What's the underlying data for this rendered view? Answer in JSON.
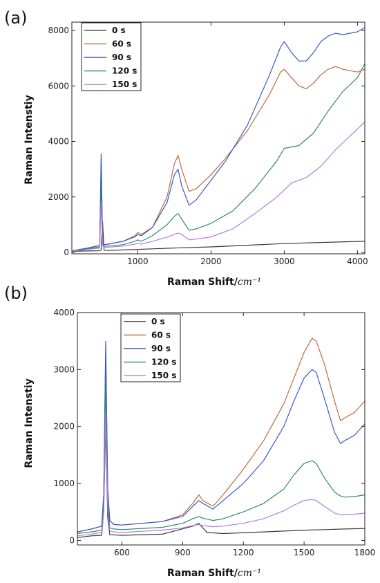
{
  "chart_data": [
    {
      "type": "line",
      "panel_label": "(a)",
      "xlabel": "Raman Shift/",
      "xunit": "cm⁻¹",
      "ylabel": "Raman Intenstiy",
      "xlim": [
        100,
        4100
      ],
      "ylim": [
        -50,
        8300
      ],
      "xticks": [
        1000,
        2000,
        3000,
        4000
      ],
      "yticks": [
        0,
        2000,
        4000,
        6000,
        8000
      ],
      "legend_position": "top-left",
      "grid": false,
      "series": [
        {
          "name": "0 s",
          "color": "#3a3a3a",
          "x": [
            100,
            450,
            500,
            520,
            540,
            600,
            800,
            1000,
            1200,
            1500,
            2000,
            2500,
            3000,
            3500,
            4100
          ],
          "y": [
            40,
            60,
            80,
            1100,
            80,
            70,
            90,
            110,
            130,
            160,
            200,
            260,
            320,
            360,
            400
          ]
        },
        {
          "name": "60 s",
          "color": "#b86b3c",
          "x": [
            100,
            300,
            480,
            500,
            520,
            540,
            600,
            800,
            960,
            1000,
            1050,
            1200,
            1400,
            1500,
            1550,
            1600,
            1700,
            1800,
            2000,
            2200,
            2500,
            2800,
            2950,
            3000,
            3100,
            3200,
            3300,
            3400,
            3500,
            3600,
            3700,
            3800,
            3900,
            4000,
            4100
          ],
          "y": [
            50,
            150,
            250,
            3200,
            450,
            280,
            300,
            400,
            600,
            720,
            650,
            900,
            2000,
            3200,
            3500,
            3000,
            2200,
            2300,
            2800,
            3400,
            4400,
            5700,
            6500,
            6600,
            6300,
            6000,
            5900,
            6100,
            6400,
            6600,
            6700,
            6600,
            6550,
            6500,
            6600
          ]
        },
        {
          "name": "90 s",
          "color": "#3a56c8",
          "x": [
            100,
            300,
            480,
            500,
            520,
            540,
            600,
            800,
            960,
            1000,
            1050,
            1200,
            1400,
            1500,
            1550,
            1600,
            1700,
            1800,
            2000,
            2200,
            2500,
            2800,
            2950,
            3000,
            3100,
            3200,
            3300,
            3400,
            3500,
            3600,
            3700,
            3800,
            3900,
            4000,
            4100
          ],
          "y": [
            60,
            150,
            250,
            3550,
            450,
            280,
            300,
            400,
            560,
            650,
            600,
            900,
            1800,
            2800,
            3000,
            2400,
            1700,
            1900,
            2600,
            3300,
            4600,
            6400,
            7400,
            7600,
            7200,
            6900,
            6900,
            7200,
            7600,
            7800,
            7900,
            7850,
            7900,
            7950,
            8100
          ]
        },
        {
          "name": "120 s",
          "color": "#2f8a6d",
          "x": [
            100,
            300,
            480,
            500,
            520,
            540,
            600,
            800,
            960,
            1000,
            1050,
            1200,
            1400,
            1500,
            1550,
            1600,
            1700,
            1800,
            2000,
            2300,
            2600,
            2900,
            3000,
            3100,
            3200,
            3400,
            3600,
            3800,
            4000,
            4100
          ],
          "y": [
            60,
            120,
            200,
            2500,
            350,
            220,
            230,
            280,
            400,
            450,
            400,
            600,
            1000,
            1300,
            1400,
            1200,
            800,
            850,
            1050,
            1500,
            2300,
            3300,
            3750,
            3800,
            3850,
            4300,
            5100,
            5800,
            6300,
            6800
          ]
        },
        {
          "name": "150 s",
          "color": "#b57be0",
          "x": [
            100,
            300,
            480,
            500,
            520,
            540,
            600,
            800,
            960,
            1000,
            1050,
            1200,
            1400,
            1500,
            1550,
            1600,
            1700,
            1800,
            2000,
            2300,
            2600,
            2900,
            3100,
            3300,
            3500,
            3700,
            3900,
            4100
          ],
          "y": [
            50,
            100,
            160,
            1800,
            260,
            180,
            190,
            230,
            300,
            330,
            300,
            400,
            550,
            650,
            700,
            650,
            450,
            480,
            560,
            850,
            1400,
            2000,
            2500,
            2700,
            3100,
            3700,
            4200,
            4700
          ]
        }
      ]
    },
    {
      "type": "line",
      "panel_label": "(b)",
      "xlabel": "Raman Shift/",
      "xunit": "cm⁻¹",
      "ylabel": "Raman Intenstiy",
      "xlim": [
        380,
        1800
      ],
      "ylim": [
        -80,
        4000
      ],
      "xticks": [
        600,
        900,
        1200,
        1500,
        1800
      ],
      "yticks": [
        0,
        1000,
        2000,
        3000,
        4000
      ],
      "legend_position": "top-left",
      "grid": false,
      "series": [
        {
          "name": "0 s",
          "color": "#3a3a3a",
          "x": [
            380,
            450,
            500,
            510,
            520,
            530,
            540,
            600,
            800,
            950,
            980,
            1020,
            1100,
            1300,
            1500,
            1600,
            1700,
            1800
          ],
          "y": [
            50,
            80,
            90,
            500,
            2000,
            400,
            100,
            90,
            110,
            250,
            300,
            140,
            120,
            150,
            180,
            190,
            200,
            210
          ]
        },
        {
          "name": "60 s",
          "color": "#b86b3c",
          "x": [
            380,
            450,
            500,
            510,
            520,
            530,
            540,
            560,
            600,
            700,
            800,
            900,
            950,
            980,
            1000,
            1050,
            1100,
            1200,
            1300,
            1400,
            1450,
            1500,
            1540,
            1560,
            1600,
            1650,
            1680,
            1700,
            1750,
            1800
          ],
          "y": [
            150,
            200,
            250,
            800,
            3300,
            900,
            350,
            280,
            270,
            300,
            330,
            450,
            650,
            800,
            700,
            600,
            800,
            1250,
            1750,
            2400,
            2850,
            3300,
            3550,
            3500,
            3100,
            2450,
            2100,
            2150,
            2250,
            2450
          ]
        },
        {
          "name": "90 s",
          "color": "#3a56c8",
          "x": [
            380,
            450,
            500,
            510,
            520,
            530,
            540,
            560,
            600,
            700,
            800,
            900,
            950,
            980,
            1000,
            1050,
            1100,
            1200,
            1300,
            1400,
            1450,
            1500,
            1540,
            1560,
            1600,
            1650,
            1680,
            1700,
            1750,
            1800
          ],
          "y": [
            150,
            200,
            250,
            800,
            3500,
            900,
            350,
            280,
            270,
            300,
            330,
            420,
            600,
            700,
            650,
            550,
            700,
            1000,
            1400,
            2000,
            2450,
            2850,
            3000,
            2950,
            2500,
            1900,
            1700,
            1750,
            1850,
            2050
          ]
        },
        {
          "name": "120 s",
          "color": "#2f8a6d",
          "x": [
            380,
            450,
            500,
            510,
            520,
            530,
            540,
            560,
            600,
            700,
            800,
            900,
            950,
            980,
            1000,
            1050,
            1100,
            1200,
            1300,
            1400,
            1450,
            1500,
            1540,
            1560,
            1600,
            1650,
            1680,
            1700,
            1750,
            1800
          ],
          "y": [
            120,
            150,
            180,
            600,
            2800,
            700,
            220,
            200,
            190,
            210,
            230,
            300,
            380,
            420,
            390,
            350,
            380,
            500,
            650,
            900,
            1150,
            1350,
            1400,
            1350,
            1100,
            850,
            780,
            760,
            770,
            800
          ]
        },
        {
          "name": "150 s",
          "color": "#b57be0",
          "x": [
            380,
            450,
            500,
            510,
            520,
            530,
            540,
            560,
            600,
            700,
            800,
            900,
            950,
            980,
            1000,
            1050,
            1100,
            1200,
            1300,
            1400,
            1450,
            1500,
            1540,
            1560,
            1600,
            1650,
            1680,
            1700,
            1750,
            1800
          ],
          "y": [
            80,
            110,
            140,
            500,
            2200,
            550,
            170,
            150,
            140,
            160,
            180,
            220,
            260,
            280,
            260,
            240,
            250,
            300,
            380,
            520,
            620,
            700,
            720,
            700,
            600,
            480,
            450,
            450,
            460,
            480
          ]
        }
      ]
    }
  ]
}
